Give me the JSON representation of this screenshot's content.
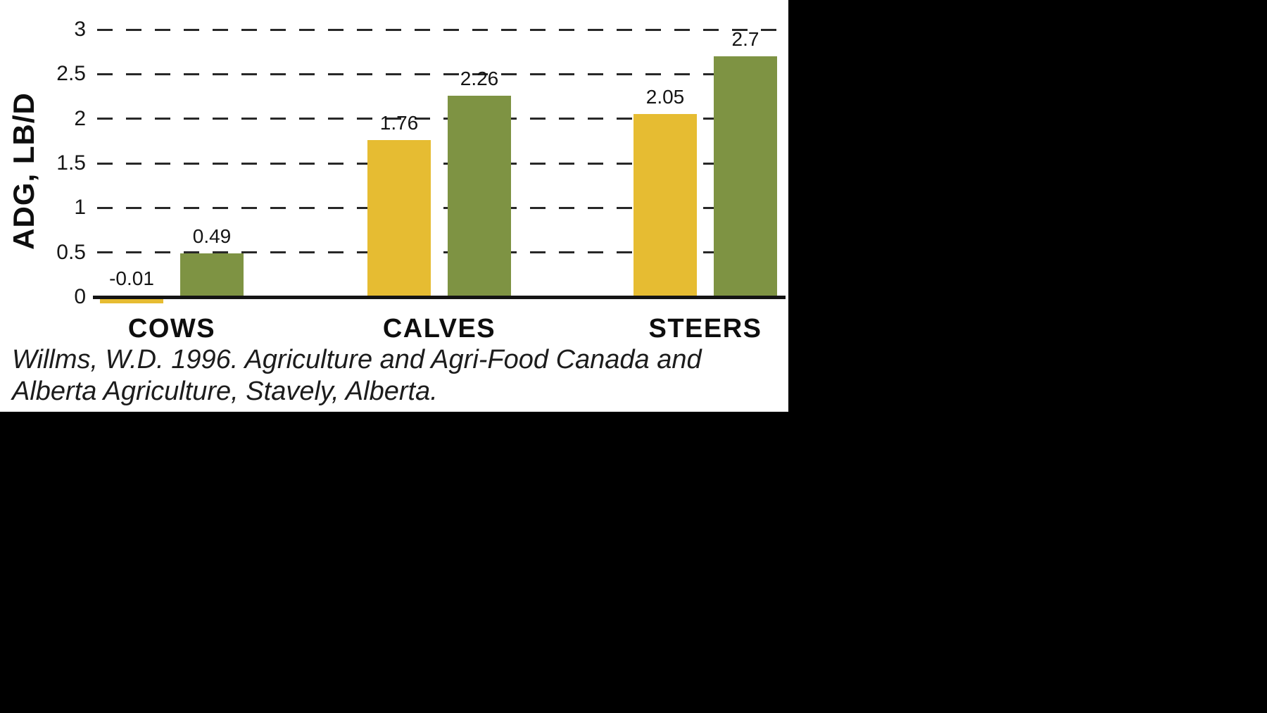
{
  "page": {
    "background_color": "#000000",
    "panel_color": "#ffffff"
  },
  "chart_data": {
    "type": "bar",
    "title": "",
    "xlabel": "",
    "ylabel": "ADG, LB/D",
    "ylim": [
      0,
      3
    ],
    "grid": "horizontal-dashed",
    "legend": "none",
    "y_ticks": [
      {
        "label": "0",
        "value": 0
      },
      {
        "label": "0.5",
        "value": 0.5
      },
      {
        "label": "1",
        "value": 1
      },
      {
        "label": "1.5",
        "value": 1.5
      },
      {
        "label": "2",
        "value": 2
      },
      {
        "label": "2.5",
        "value": 2.5
      },
      {
        "label": "3",
        "value": 3
      }
    ],
    "categories": [
      "COWS",
      "CALVES",
      "STEERS"
    ],
    "series": [
      {
        "name": "series-1-yellow",
        "color": "#E6BC32",
        "values": [
          -0.01,
          1.76,
          2.05
        ],
        "labels": [
          "-0.01",
          "1.76",
          "2.05"
        ]
      },
      {
        "name": "series-2-green",
        "color": "#7E9343",
        "values": [
          0.49,
          2.26,
          2.7
        ],
        "labels": [
          "0.49",
          "2.26",
          "2.7"
        ]
      }
    ]
  },
  "citation": {
    "lines": [
      "Willms, W.D. 1996. Agriculture and Agri-Food Canada and",
      "Alberta Agriculture, Stavely, Alberta."
    ]
  }
}
